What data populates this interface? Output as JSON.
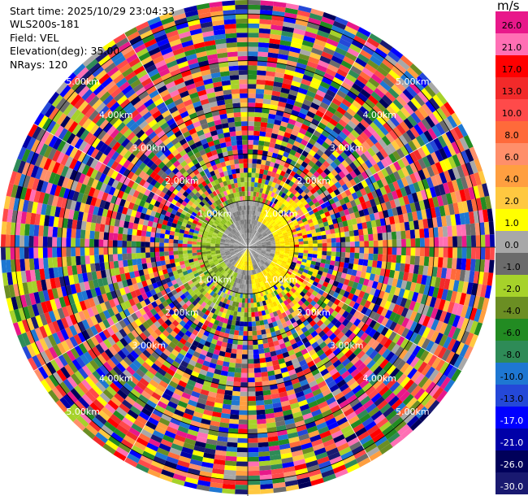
{
  "header": {
    "start_time": "Start time: 2025/10/29 23:04:33",
    "instrument": "WLS200s-181",
    "field": "Field: VEL",
    "elevation": "Elevation(deg): 35.00",
    "nrays": "NRays: 120"
  },
  "chart_data": {
    "type": "heatmap",
    "projection": "polar-ppi",
    "field": "VEL",
    "units": "m/s",
    "n_rays": 120,
    "elevation_deg": 35.0,
    "range_rings": [
      "1.00km",
      "2.00km",
      "3.00km",
      "4.00km",
      "5.00km"
    ],
    "max_range_km": 5.3,
    "colorbar": {
      "title": "m/s",
      "ticks": [
        "26.0",
        "21.0",
        "17.0",
        "13.0",
        "10.0",
        "8.0",
        "6.0",
        "4.0",
        "2.0",
        "1.0",
        "0.0",
        "-1.0",
        "-2.0",
        "-4.0",
        "-6.0",
        "-8.0",
        "-10.0",
        "-13.0",
        "-17.0",
        "-21.0",
        "-26.0",
        "-30.0"
      ],
      "colors": [
        "#e8188a",
        "#ff6fb4",
        "#ff0000",
        "#f22a2a",
        "#ff4a4a",
        "#ff6a3a",
        "#ff8f6a",
        "#ff9f40",
        "#ffc840",
        "#ffff00",
        "#a8a8a8",
        "#6b6b6b",
        "#a6d22a",
        "#6b8e23",
        "#228b22",
        "#2e8b57",
        "#1e77d2",
        "#2448d8",
        "#0000ff",
        "#0000a8",
        "#00005a",
        "#191970"
      ]
    }
  }
}
